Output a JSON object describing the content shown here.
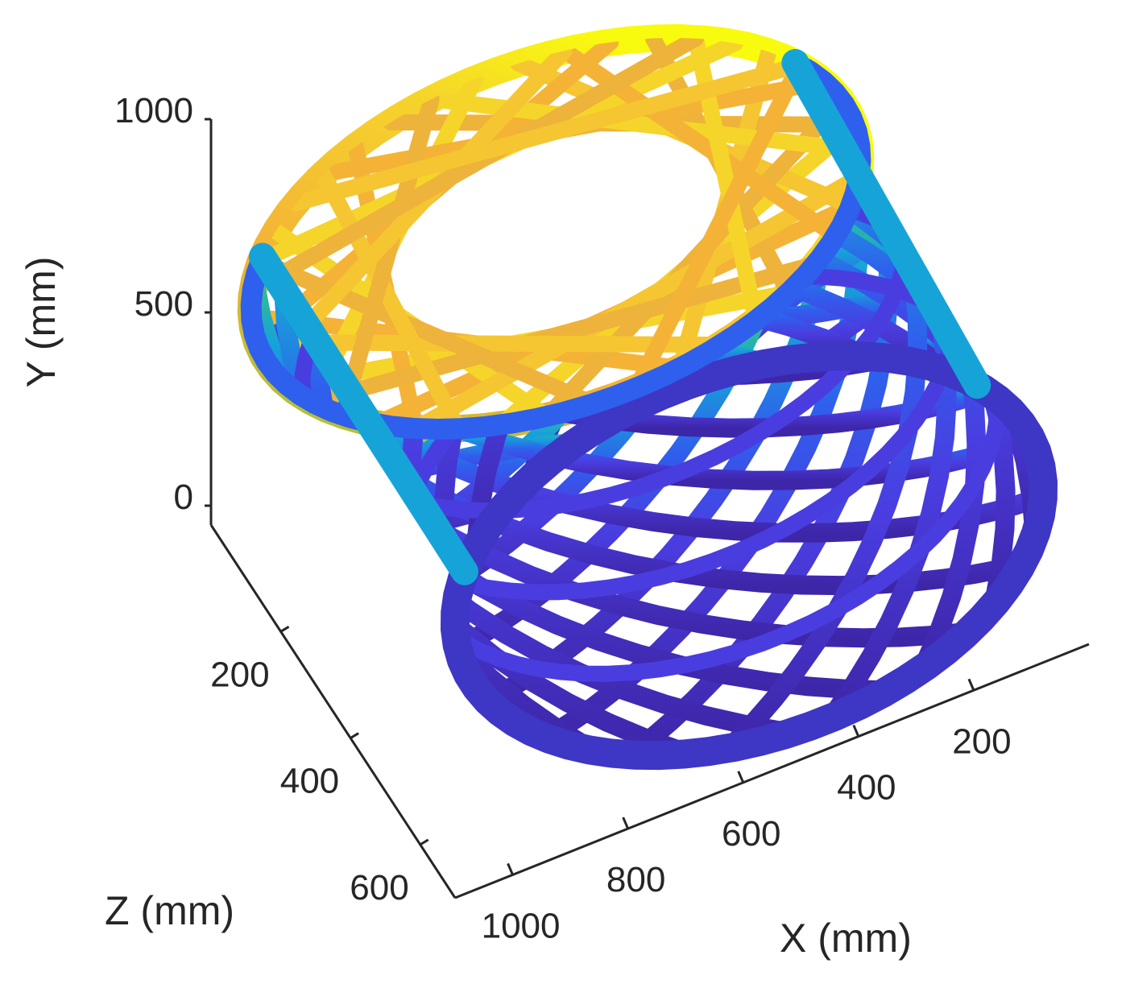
{
  "chart_data": {
    "type": "scatter",
    "projection": "3d",
    "title": "",
    "xlabel": "X (mm)",
    "ylabel": "Y (mm)",
    "zlabel": "Z (mm)",
    "x_ticks": [
      200,
      400,
      600,
      800,
      1000
    ],
    "y_ticks": [
      0,
      500,
      1000
    ],
    "z_ticks": [
      200,
      400,
      600
    ],
    "xlim": [
      0,
      1100
    ],
    "ylim": [
      0,
      1000
    ],
    "zlim": [
      0,
      700
    ],
    "colormap": "parula",
    "color_by": "y",
    "colormap_stops": [
      "#3e26a8",
      "#2f5fed",
      "#16a4d8",
      "#37bf89",
      "#a6c431",
      "#f4b337",
      "#f9fb0e"
    ],
    "grid": false,
    "legend": false,
    "shape": "cylindrical lattice shell"
  }
}
